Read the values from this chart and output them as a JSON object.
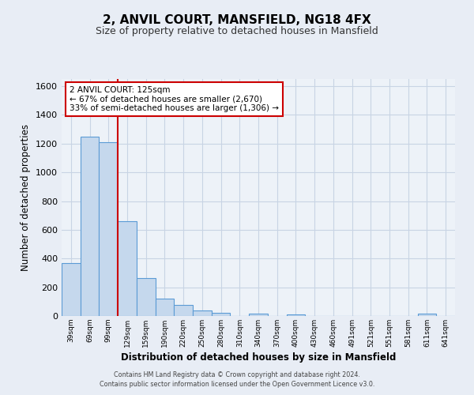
{
  "title": "2, ANVIL COURT, MANSFIELD, NG18 4FX",
  "subtitle": "Size of property relative to detached houses in Mansfield",
  "xlabel": "Distribution of detached houses by size in Mansfield",
  "ylabel": "Number of detached properties",
  "categories": [
    "39sqm",
    "69sqm",
    "99sqm",
    "129sqm",
    "159sqm",
    "190sqm",
    "220sqm",
    "250sqm",
    "280sqm",
    "310sqm",
    "340sqm",
    "370sqm",
    "400sqm",
    "430sqm",
    "460sqm",
    "491sqm",
    "521sqm",
    "551sqm",
    "581sqm",
    "611sqm",
    "641sqm"
  ],
  "values": [
    370,
    1250,
    1210,
    660,
    265,
    120,
    75,
    38,
    22,
    0,
    17,
    0,
    12,
    0,
    0,
    0,
    0,
    0,
    0,
    15,
    0
  ],
  "bar_color": "#c5d8ed",
  "bar_edge_color": "#5b9bd5",
  "ylim": [
    0,
    1650
  ],
  "yticks": [
    0,
    200,
    400,
    600,
    800,
    1000,
    1200,
    1400,
    1600
  ],
  "vline_color": "#cc0000",
  "annotation_title": "2 ANVIL COURT: 125sqm",
  "annotation_line1": "← 67% of detached houses are smaller (2,670)",
  "annotation_line2": "33% of semi-detached houses are larger (1,306) →",
  "annotation_box_color": "#ffffff",
  "annotation_box_edge_color": "#cc0000",
  "footer1": "Contains HM Land Registry data © Crown copyright and database right 2024.",
  "footer2": "Contains public sector information licensed under the Open Government Licence v3.0.",
  "background_color": "#e8edf5",
  "plot_background_color": "#edf2f8",
  "grid_color": "#c8d4e4"
}
